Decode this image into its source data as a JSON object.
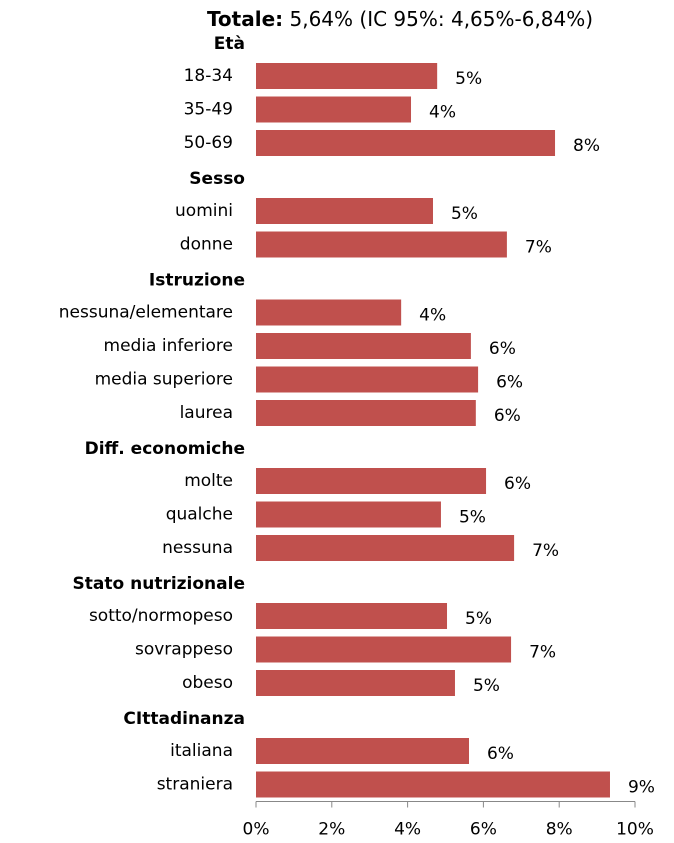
{
  "chart_data": {
    "type": "bar",
    "orientation": "horizontal",
    "title": "Totale:",
    "subtitle": "5,64% (IC 95%: 4,65%-6,84%)",
    "color": "#c0504d",
    "groups": [
      {
        "name": "Età",
        "categories": [
          "18-34",
          "35-49",
          "50-69"
        ],
        "values": [
          4.78,
          4.09,
          7.89
        ],
        "value_labels": [
          "5%",
          "4%",
          "8%"
        ]
      },
      {
        "name": "Sesso",
        "categories": [
          "uomini",
          "donne"
        ],
        "values": [
          4.67,
          6.62
        ],
        "value_labels": [
          "5%",
          "7%"
        ]
      },
      {
        "name": "Istruzione",
        "categories": [
          "nessuna/elementare",
          "media inferiore",
          "media superiore",
          "laurea"
        ],
        "values": [
          3.83,
          5.67,
          5.86,
          5.8
        ],
        "value_labels": [
          "4%",
          "6%",
          "6%",
          "6%"
        ]
      },
      {
        "name": "Diff. economiche",
        "categories": [
          "molte",
          "qualche",
          "nessuna"
        ],
        "values": [
          6.07,
          4.88,
          6.81
        ],
        "value_labels": [
          "6%",
          "5%",
          "7%"
        ]
      },
      {
        "name": "Stato nutrizionale",
        "categories": [
          "sotto/normopeso",
          "sovrappeso",
          "obeso"
        ],
        "values": [
          5.04,
          6.73,
          5.25
        ],
        "value_labels": [
          "5%",
          "7%",
          "5%"
        ]
      },
      {
        "name": "CIttadinanza",
        "categories": [
          "italiana",
          "straniera"
        ],
        "values": [
          5.62,
          9.34
        ],
        "value_labels": [
          "6%",
          "9%"
        ]
      }
    ],
    "xlim": [
      0,
      10
    ],
    "xticks": [
      {
        "value": 0,
        "label": "0%"
      },
      {
        "value": 2,
        "label": "2%"
      },
      {
        "value": 4,
        "label": "4%"
      },
      {
        "value": 6,
        "label": "6%"
      },
      {
        "value": 8,
        "label": "8%"
      },
      {
        "value": 10,
        "label": "10%"
      }
    ]
  }
}
